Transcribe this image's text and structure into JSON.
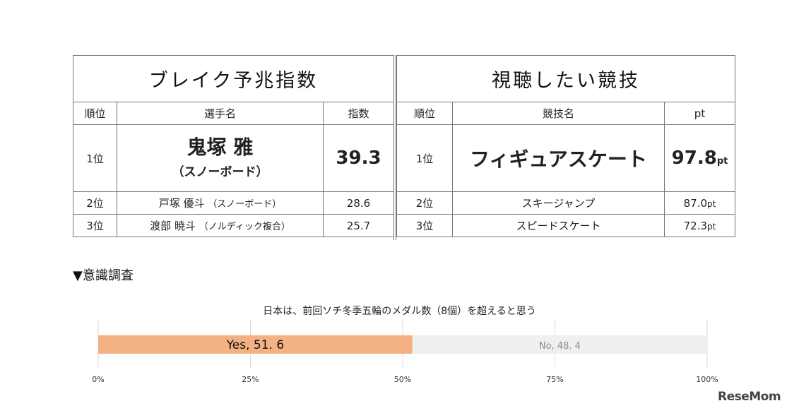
{
  "left_table": {
    "title": "ブレイク予兆指数",
    "headers": [
      "順位",
      "選手名",
      "指数"
    ],
    "top": {
      "rank": "1位",
      "name": "鬼塚 雅",
      "sport": "（スノーボード）",
      "value": "39.3"
    },
    "rows": [
      {
        "rank": "2位",
        "name": "戸塚 優斗",
        "sport": "（スノーボード）",
        "value": "28.6"
      },
      {
        "rank": "3位",
        "name": "渡部 暁斗",
        "sport": "（ノルディック複合）",
        "value": "25.7"
      }
    ]
  },
  "right_table": {
    "title": "視聴したい競技",
    "headers": [
      "順位",
      "競技名",
      "pt"
    ],
    "top": {
      "rank": "1位",
      "event": "フィギュアスケート",
      "value": "97.8",
      "unit": "pt"
    },
    "rows": [
      {
        "rank": "2位",
        "event": "スキージャンプ",
        "value": "87.0",
        "unit": "pt"
      },
      {
        "rank": "3位",
        "event": "スピードスケート",
        "value": "72.3",
        "unit": "pt"
      }
    ]
  },
  "section_title": "▼意識調査",
  "chart_data": {
    "type": "bar",
    "orientation": "horizontal-stacked",
    "title": "日本は、前回ソチ冬季五輪のメダル数（8個）を超えると思う",
    "series": [
      {
        "name": "Yes",
        "value": 51.6,
        "label": "Yes, 51. 6",
        "color": "#f4b183",
        "text_color": "#111111"
      },
      {
        "name": "No",
        "value": 48.4,
        "label": "No, 48. 4",
        "color": "#efefef",
        "text_color": "#8a8a8a"
      }
    ],
    "xlim": [
      0,
      100
    ],
    "ticks": [
      0,
      25,
      50,
      75,
      100
    ],
    "tick_labels": [
      "0%",
      "25%",
      "50%",
      "75%",
      "100%"
    ],
    "grid": true
  },
  "logo": "ReseMom"
}
